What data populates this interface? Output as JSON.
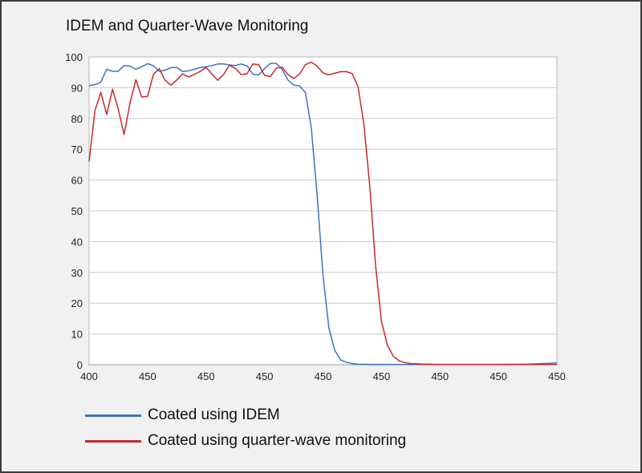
{
  "title": "IDEM and Quarter-Wave Monitoring",
  "legend": {
    "items": [
      {
        "label": "Coated using IDEM",
        "color": "#3b74c4"
      },
      {
        "label": "Coated using quarter-wave monitoring",
        "color": "#c9292a"
      }
    ]
  },
  "chart_data": {
    "type": "line",
    "title": "IDEM and Quarter-Wave Monitoring",
    "xlabel": "",
    "ylabel": "",
    "x_tick_labels": [
      "400",
      "450",
      "450",
      "450",
      "450",
      "450",
      "450",
      "450",
      "450"
    ],
    "y_ticks": [
      0,
      10,
      20,
      30,
      40,
      50,
      60,
      70,
      80,
      90,
      100
    ],
    "x_range": [
      0,
      80
    ],
    "ylim": [
      0,
      100
    ],
    "grid": "horizontal",
    "legend_position": "bottom",
    "series": [
      {
        "name": "Coated using IDEM",
        "color": "#3b74c4",
        "x": [
          0,
          1,
          2,
          3,
          4,
          5,
          6,
          7,
          8,
          9,
          10,
          11,
          12,
          13,
          14,
          15,
          16,
          17,
          18,
          19,
          20,
          21,
          22,
          23,
          24,
          25,
          26,
          27,
          28,
          29,
          30,
          31,
          32,
          33,
          34,
          35,
          36,
          37,
          38,
          39,
          40,
          41,
          42,
          43,
          44,
          45,
          46,
          47,
          48,
          49,
          50,
          51,
          52,
          53,
          54,
          55,
          56,
          57,
          58,
          59,
          60,
          65,
          70,
          75,
          80
        ],
        "values": [
          90.7,
          91,
          91.8,
          96,
          95.3,
          95.4,
          97.2,
          97,
          96,
          96.8,
          97.8,
          97.2,
          95.3,
          95.7,
          96.5,
          96.6,
          95.2,
          95.5,
          96,
          96.6,
          96.8,
          97.2,
          97.7,
          97.7,
          97.4,
          97.2,
          97.7,
          97.1,
          94.4,
          94.2,
          96.2,
          97.9,
          97.9,
          96,
          92.5,
          90.8,
          90.6,
          88.4,
          77,
          55,
          29,
          12,
          4.7,
          1.6,
          0.8,
          0.4,
          0.2,
          0.15,
          0.1,
          0.1,
          0.1,
          0.1,
          0.1,
          0.1,
          0.1,
          0.1,
          0.1,
          0.1,
          0.1,
          0.1,
          0.1,
          0.1,
          0.1,
          0.2,
          0.6
        ]
      },
      {
        "name": "Coated using quarter-wave monitoring",
        "color": "#c9292a",
        "x": [
          0,
          1,
          2,
          3,
          4,
          5,
          6,
          7,
          8,
          9,
          10,
          11,
          12,
          13,
          14,
          15,
          16,
          17,
          18,
          19,
          20,
          21,
          22,
          23,
          24,
          25,
          26,
          27,
          28,
          29,
          30,
          31,
          32,
          33,
          34,
          35,
          36,
          37,
          38,
          39,
          40,
          41,
          42,
          43,
          44,
          45,
          46,
          47,
          48,
          49,
          50,
          51,
          52,
          53,
          54,
          55,
          56,
          57,
          58,
          59,
          60,
          65,
          70,
          75,
          80
        ],
        "values": [
          66,
          82.5,
          88.5,
          81.3,
          89.5,
          83,
          74.8,
          85,
          92.6,
          87,
          87.2,
          94.3,
          96.2,
          92.4,
          90.8,
          92.5,
          94.5,
          93.5,
          94.3,
          95.3,
          96.6,
          94.5,
          92.4,
          94.3,
          97.3,
          96.3,
          94.3,
          94.5,
          97.7,
          97.5,
          94,
          93.6,
          96.3,
          96.7,
          94.3,
          93,
          94.5,
          97.5,
          98.3,
          97,
          94.8,
          94.2,
          94.7,
          95.2,
          95.2,
          94.6,
          90.3,
          78,
          58,
          32,
          14,
          6.4,
          2.8,
          1.3,
          0.7,
          0.4,
          0.3,
          0.2,
          0.2,
          0.1,
          0.1,
          0.1,
          0.1,
          0.1,
          0.1
        ]
      }
    ]
  }
}
